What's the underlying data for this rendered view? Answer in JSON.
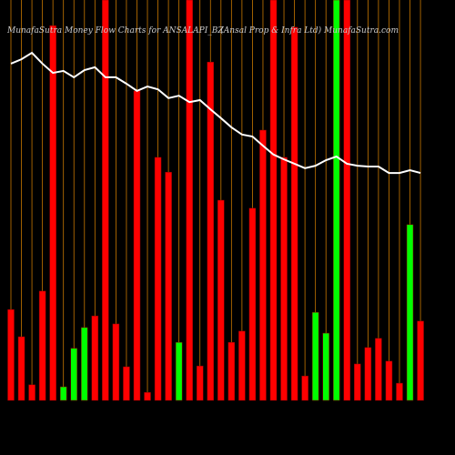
{
  "chart_data": {
    "type": "bar",
    "title": "MunafaSutra  Money Flow  Charts for ANSALAPI_BZ",
    "subtitle": "(Ansal Prop & Infra  Ltd) MunafaSutra.com",
    "categories": [
      null,
      null,
      null,
      null,
      null,
      null,
      null,
      null,
      null,
      null,
      null,
      null,
      null,
      null,
      null,
      null,
      null,
      null,
      null,
      null,
      null,
      null,
      null,
      null,
      null,
      null,
      null,
      null,
      null,
      null,
      null,
      null,
      null,
      null,
      null,
      null,
      null,
      null,
      null,
      null
    ],
    "values": [
      22.7,
      15.9,
      3.9,
      27.3,
      93.6,
      3.4,
      13,
      18.2,
      21.1,
      100,
      19.1,
      8.4,
      77.3,
      2,
      60.7,
      57,
      14.5,
      100,
      8.6,
      84.5,
      50,
      14.5,
      17.3,
      48,
      67.5,
      100,
      60.7,
      93.2,
      6.1,
      22,
      16.8,
      100,
      100,
      9.1,
      13.2,
      15.5,
      9.8,
      4.3,
      43.9,
      19.8
    ],
    "bar_colors": [
      "#ff0000",
      "#ff0000",
      "#ff0000",
      "#ff0000",
      "#ff0000",
      "#00ff00",
      "#00ff00",
      "#00ff00",
      "#ff0000",
      "#ff0000",
      "#ff0000",
      "#ff0000",
      "#ff0000",
      "#ff0000",
      "#ff0000",
      "#ff0000",
      "#00ff00",
      "#ff0000",
      "#ff0000",
      "#ff0000",
      "#ff0000",
      "#ff0000",
      "#ff0000",
      "#ff0000",
      "#ff0000",
      "#ff0000",
      "#ff0000",
      "#ff0000",
      "#ff0000",
      "#00ff00",
      "#00ff00",
      "#00ff00",
      "#ff0000",
      "#ff0000",
      "#ff0000",
      "#ff0000",
      "#ff0000",
      "#ff0000",
      "#00ff00",
      "#ff0000"
    ],
    "line_values": [
      84.1,
      85.2,
      86.8,
      84.1,
      81.8,
      82.3,
      80.7,
      82.5,
      83.2,
      80.7,
      80.7,
      79.1,
      77.3,
      78.4,
      77.7,
      75.5,
      76.1,
      74.5,
      75,
      72.7,
      70.5,
      68.2,
      66.4,
      65.9,
      63.6,
      61.4,
      60.2,
      59.1,
      58,
      58.6,
      60,
      60.9,
      59.1,
      58.6,
      58.4,
      58.4,
      56.8,
      56.8,
      57.5,
      56.8
    ],
    "line_color": "#ffffff",
    "ylim": [
      0,
      100
    ],
    "grid_color": "#c87800"
  }
}
